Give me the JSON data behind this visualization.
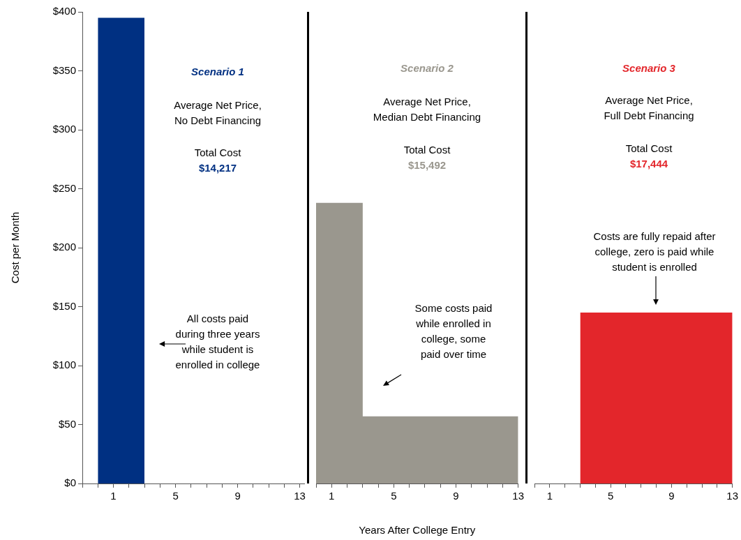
{
  "chart_data": [
    {
      "type": "area",
      "title": "Scenario 1",
      "ylabel": "Cost per Month",
      "x": [
        0,
        3
      ],
      "values": [
        395,
        395
      ],
      "color": "#003082",
      "xlim": [
        -1,
        13.3
      ],
      "xticks": [
        {
          "value": -1,
          "label": null
        },
        {
          "value": 0,
          "label": null
        },
        1,
        {
          "value": 2,
          "label": null
        },
        {
          "value": 3,
          "label": null
        },
        {
          "value": 4,
          "label": null
        },
        5,
        {
          "value": 6,
          "label": null
        },
        {
          "value": 7,
          "label": null
        },
        {
          "value": 8,
          "label": null
        },
        9,
        {
          "value": 10,
          "label": null
        },
        {
          "value": 11,
          "label": null
        },
        {
          "value": 12,
          "label": null
        },
        13
      ],
      "ylim": [
        0,
        400
      ],
      "yticks": [
        {
          "value": 0,
          "label": "$0"
        },
        {
          "value": 50,
          "label": "$50"
        },
        {
          "value": 100,
          "label": "$100"
        },
        {
          "value": 150,
          "label": "$150"
        },
        {
          "value": 200,
          "label": "$200"
        },
        {
          "value": 250,
          "label": "$250"
        },
        {
          "value": 300,
          "label": "$300"
        },
        {
          "value": 350,
          "label": "$350"
        },
        {
          "value": 400,
          "label": "$400"
        }
      ],
      "annotations": [
        "Average Net Price,\nNo Debt Financing",
        "Total Cost",
        "$14,217",
        "All costs paid during three years while student is enrolled in college"
      ]
    },
    {
      "type": "area",
      "title": "Scenario 2",
      "xlabel": "Years After College Entry",
      "x": [
        0,
        3,
        3,
        13
      ],
      "values": [
        238,
        238,
        57,
        57
      ],
      "color": "#9a978e",
      "xlim": [
        0,
        13
      ],
      "xticks": [
        {
          "value": 0,
          "label": null
        },
        1,
        {
          "value": 2,
          "label": null
        },
        {
          "value": 3,
          "label": null
        },
        {
          "value": 4,
          "label": null
        },
        5,
        {
          "value": 6,
          "label": null
        },
        {
          "value": 7,
          "label": null
        },
        {
          "value": 8,
          "label": null
        },
        9,
        {
          "value": 10,
          "label": null
        },
        {
          "value": 11,
          "label": null
        },
        {
          "value": 12,
          "label": null
        },
        13
      ],
      "ylim": [
        0,
        400
      ],
      "tick_labels": "x",
      "annotations": [
        "Average Net Price,\nMedian Debt Financing",
        "Total Cost",
        "$15,492",
        "Some costs paid while enrolled in college, some paid over time"
      ]
    },
    {
      "type": "area",
      "title": "Scenario 3",
      "x": [
        3,
        13
      ],
      "values": [
        145,
        145
      ],
      "color": "#e3262b",
      "xlim": [
        0,
        13
      ],
      "xticks": [
        {
          "value": 0,
          "label": null
        },
        1,
        {
          "value": 2,
          "label": null
        },
        {
          "value": 3,
          "label": null
        },
        {
          "value": 4,
          "label": null
        },
        5,
        {
          "value": 6,
          "label": null
        },
        {
          "value": 7,
          "label": null
        },
        {
          "value": 8,
          "label": null
        },
        9,
        {
          "value": 10,
          "label": null
        },
        {
          "value": 11,
          "label": null
        },
        {
          "value": 12,
          "label": null
        },
        13
      ],
      "ylim": [
        0,
        400
      ],
      "tick_labels": "x",
      "annotations": [
        "Average Net Price,\nFull Debt Financing",
        "Total Cost",
        "$17,444",
        "Costs are fully repaid after college, zero is paid while student is enrolled"
      ]
    }
  ]
}
